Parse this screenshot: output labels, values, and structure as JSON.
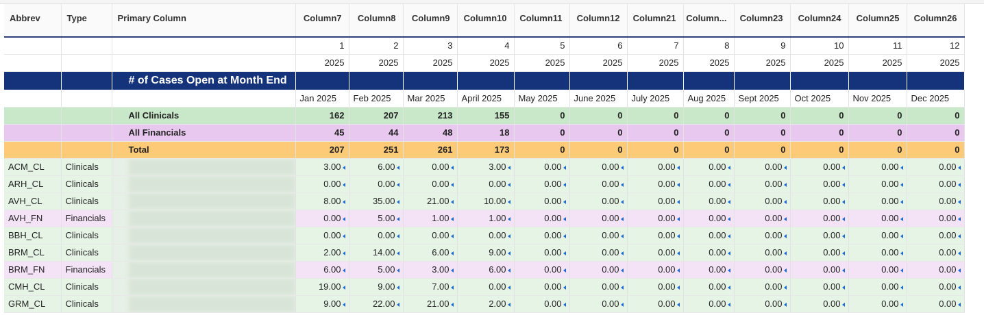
{
  "columns": [
    {
      "label": "Abbrev"
    },
    {
      "label": "Type"
    },
    {
      "label": "Primary Column"
    },
    {
      "label": "Column7"
    },
    {
      "label": "Column8"
    },
    {
      "label": "Column9"
    },
    {
      "label": "Column10"
    },
    {
      "label": "Column11"
    },
    {
      "label": "Column12"
    },
    {
      "label": "Column21"
    },
    {
      "label": "Column..."
    },
    {
      "label": "Column23"
    },
    {
      "label": "Column24"
    },
    {
      "label": "Column25"
    },
    {
      "label": "Column26"
    }
  ],
  "index_row": [
    "1",
    "2",
    "3",
    "4",
    "5",
    "6",
    "7",
    "8",
    "9",
    "10",
    "11",
    "12"
  ],
  "year_row": [
    "2025",
    "2025",
    "2025",
    "2025",
    "2025",
    "2025",
    "2025",
    "2025",
    "2025",
    "2025",
    "2025",
    "2025"
  ],
  "section_title": "# of Cases Open at Month End",
  "months": [
    "Jan 2025",
    "Feb 2025",
    "Mar 2025",
    "April 2025",
    "May 2025",
    "June 2025",
    "July 2025",
    "Aug 2025",
    "Sept 2025",
    "Oct 2025",
    "Nov 2025",
    "Dec 2025"
  ],
  "summary": [
    {
      "label": "All Clinicals",
      "kind": "cl",
      "values": [
        "162",
        "207",
        "213",
        "155",
        "0",
        "0",
        "0",
        "0",
        "0",
        "0",
        "0",
        "0"
      ]
    },
    {
      "label": "All Financials",
      "kind": "fn",
      "values": [
        "45",
        "44",
        "48",
        "18",
        "0",
        "0",
        "0",
        "0",
        "0",
        "0",
        "0",
        "0"
      ]
    },
    {
      "label": "Total",
      "kind": "tot",
      "values": [
        "207",
        "251",
        "261",
        "173",
        "0",
        "0",
        "0",
        "0",
        "0",
        "0",
        "0",
        "0"
      ]
    }
  ],
  "rows": [
    {
      "abbrev": "ACM_CL",
      "type": "Clinicals",
      "kind": "cl",
      "values": [
        "3.00",
        "6.00",
        "0.00",
        "3.00",
        "0.00",
        "0.00",
        "0.00",
        "0.00",
        "0.00",
        "0.00",
        "0.00",
        "0.00"
      ]
    },
    {
      "abbrev": "ARH_CL",
      "type": "Clinicals",
      "kind": "cl",
      "values": [
        "0.00",
        "0.00",
        "0.00",
        "0.00",
        "0.00",
        "0.00",
        "0.00",
        "0.00",
        "0.00",
        "0.00",
        "0.00",
        "0.00"
      ]
    },
    {
      "abbrev": "AVH_CL",
      "type": "Clinicals",
      "kind": "cl",
      "values": [
        "8.00",
        "35.00",
        "21.00",
        "10.00",
        "0.00",
        "0.00",
        "0.00",
        "0.00",
        "0.00",
        "0.00",
        "0.00",
        "0.00"
      ]
    },
    {
      "abbrev": "AVH_FN",
      "type": "Financials",
      "kind": "fn",
      "values": [
        "0.00",
        "5.00",
        "1.00",
        "1.00",
        "0.00",
        "0.00",
        "0.00",
        "0.00",
        "0.00",
        "0.00",
        "0.00",
        "0.00"
      ]
    },
    {
      "abbrev": "BBH_CL",
      "type": "Clinicals",
      "kind": "cl",
      "values": [
        "0.00",
        "0.00",
        "0.00",
        "0.00",
        "0.00",
        "0.00",
        "0.00",
        "0.00",
        "0.00",
        "0.00",
        "0.00",
        "0.00"
      ]
    },
    {
      "abbrev": "BRM_CL",
      "type": "Clinicals",
      "kind": "cl",
      "values": [
        "2.00",
        "14.00",
        "6.00",
        "9.00",
        "0.00",
        "0.00",
        "0.00",
        "0.00",
        "0.00",
        "0.00",
        "0.00",
        "0.00"
      ]
    },
    {
      "abbrev": "BRM_FN",
      "type": "Financials",
      "kind": "fn",
      "values": [
        "6.00",
        "5.00",
        "3.00",
        "6.00",
        "0.00",
        "0.00",
        "0.00",
        "0.00",
        "0.00",
        "0.00",
        "0.00",
        "0.00"
      ]
    },
    {
      "abbrev": "CMH_CL",
      "type": "Clinicals",
      "kind": "cl",
      "values": [
        "19.00",
        "9.00",
        "7.00",
        "0.00",
        "0.00",
        "0.00",
        "0.00",
        "0.00",
        "0.00",
        "0.00",
        "0.00",
        "0.00"
      ]
    },
    {
      "abbrev": "GRM_CL",
      "type": "Clinicals",
      "kind": "cl",
      "values": [
        "9.00",
        "22.00",
        "21.00",
        "2.00",
        "0.00",
        "0.00",
        "0.00",
        "0.00",
        "0.00",
        "0.00",
        "0.00",
        "0.00"
      ]
    }
  ]
}
